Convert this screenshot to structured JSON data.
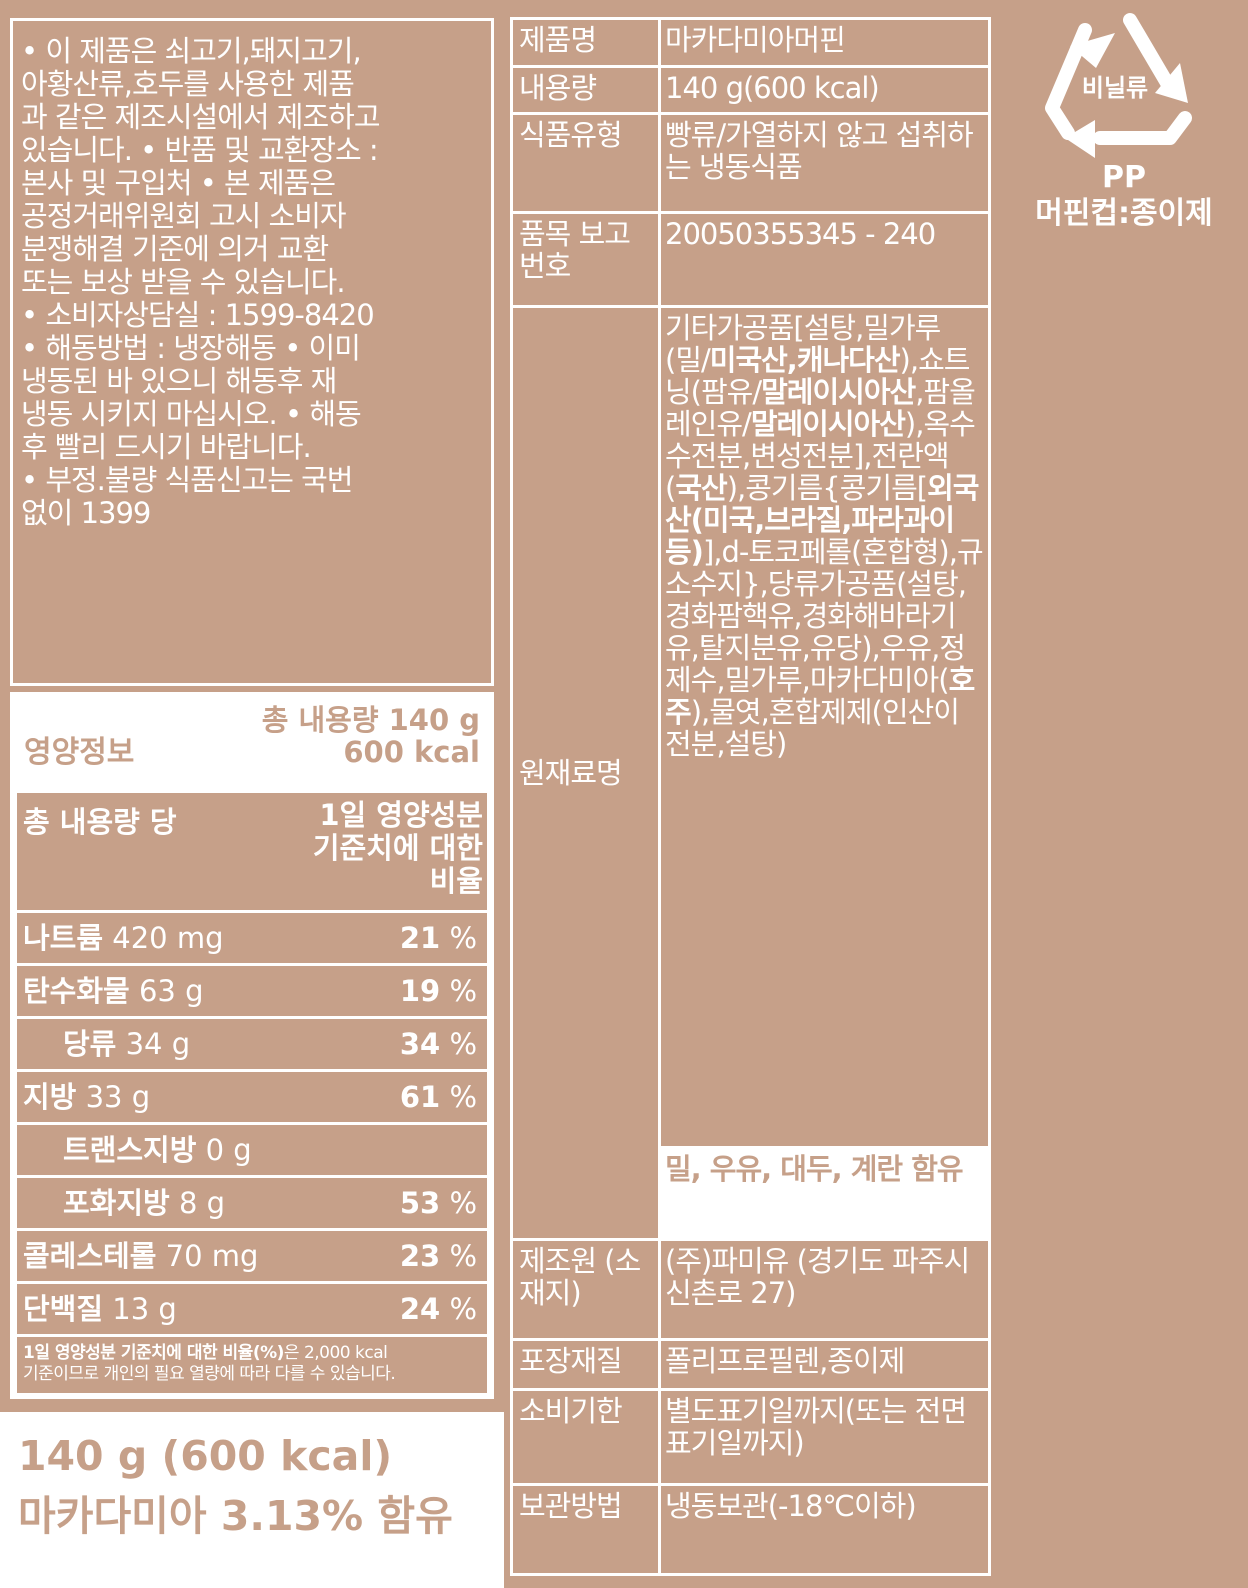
{
  "notice": {
    "lines": [
      "• 이 제품은 쇠고기,돼지고기,",
      "아황산류,호두를 사용한 제품",
      "과 같은 제조시설에서 제조하고",
      "있습니다. • 반품 및 교환장소 :",
      "본사 및 구입처 • 본 제품은",
      "공정거래위원회 고시 소비자",
      "분쟁해결 기준에 의거 교환",
      "또는 보상 받을 수 있습니다.",
      "• 소비자상담실 : 1599-8420",
      "• 해동방법 : 냉장해동 • 이미",
      "냉동된 바  있으니 해동후 재",
      "냉동 시키지 마십시오. • 해동",
      "후 빨리 드시기 바랍니다.",
      "• 부정.불량 식품신고는 국번",
      "없이 1399"
    ]
  },
  "nutrition": {
    "title": "영양정보",
    "total_line1": "총 내용량 140 g",
    "total_line2": "600 kcal",
    "head_left": "총 내용량 당",
    "head_right": [
      "1일 영양성분",
      "기준치에 대한",
      "비율"
    ],
    "rows": [
      {
        "name": "나트륨",
        "amount": "420 mg",
        "pct": "21",
        "sub": false
      },
      {
        "name": "탄수화물",
        "amount": "63 g",
        "pct": "19",
        "sub": false
      },
      {
        "name": "당류",
        "amount": "34 g",
        "pct": "34",
        "sub": true
      },
      {
        "name": "지방",
        "amount": "33 g",
        "pct": "61",
        "sub": false
      },
      {
        "name": "트랜스지방",
        "amount": "0 g",
        "pct": "",
        "sub": true
      },
      {
        "name": "포화지방",
        "amount": "8 g",
        "pct": "53",
        "sub": true
      },
      {
        "name": "콜레스테롤",
        "amount": "70 mg",
        "pct": "23",
        "sub": false
      },
      {
        "name": "단백질",
        "amount": "13 g",
        "pct": "24",
        "sub": false
      }
    ],
    "pct_unit": "%",
    "foot_bold": "1일 영양성분 기준치에 대한 비율(%)",
    "foot_rest": "은 2,000 kcal",
    "foot_line2": "기준이므로 개인의 필요 열량에 따라 다를 수 있습니다."
  },
  "bottom": {
    "line1": "140 g (600 kcal)",
    "line2": "마카다미아 3.13% 함유"
  },
  "info": {
    "rows": [
      {
        "label": "제품명",
        "value": "마카다미아머핀"
      },
      {
        "label": "내용량",
        "value": "140 g(600 kcal)"
      },
      {
        "label": "식품유형",
        "value": "빵류/가열하지 않고 섭취하는 냉동식품"
      },
      {
        "label": "품목 보고번호",
        "value": "20050355345 - 240"
      }
    ],
    "ingredients_label": "원재료명",
    "ingredients": [
      {
        "t": "기타가공품[설탕,밀가루(밀/"
      },
      {
        "t": "미국산,캐나다산",
        "b": true
      },
      {
        "t": "),쇼트닝(팜유/"
      },
      {
        "t": "말레이시아산",
        "b": true
      },
      {
        "t": ",팜올레인유/"
      },
      {
        "t": "말레이시아산",
        "b": true
      },
      {
        "t": "),옥수수전분,변성전분],전란액("
      },
      {
        "t": "국산",
        "b": true
      },
      {
        "t": "),콩기름{콩기름["
      },
      {
        "t": "외국산(미국,브라질,파라과이등)",
        "b": true
      },
      {
        "t": "],d-토코페롤(혼합형),규소수지},당류가공품(설탕,경화팜핵유,경화해바라기유,탈지분유,유당),우유,정제수,밀가루,마카다미아("
      },
      {
        "t": "호주",
        "b": true
      },
      {
        "t": "),물엿,혼합제제(인산이전분,설탕)"
      }
    ],
    "allergy": "밀, 우유, 대두, 계란 함유",
    "rows2": [
      {
        "label": "제조원 (소재지)",
        "value": "(주)파미유 (경기도 파주시 신촌로 27)"
      },
      {
        "label": "포장재질",
        "value": "폴리프로필렌,종이제"
      },
      {
        "label": "소비기한",
        "value": "별도표기일까지(또는 전면표기일까지)"
      },
      {
        "label": "보관방법",
        "value": "냉동보관(-18℃이하)"
      }
    ]
  },
  "recycle": {
    "icon": "recycle-icon",
    "label": "비닐류",
    "material": "PP",
    "cup": "머핀컵:종이제"
  },
  "colors": {
    "background": "#c6a089",
    "text": "#ffffff"
  }
}
